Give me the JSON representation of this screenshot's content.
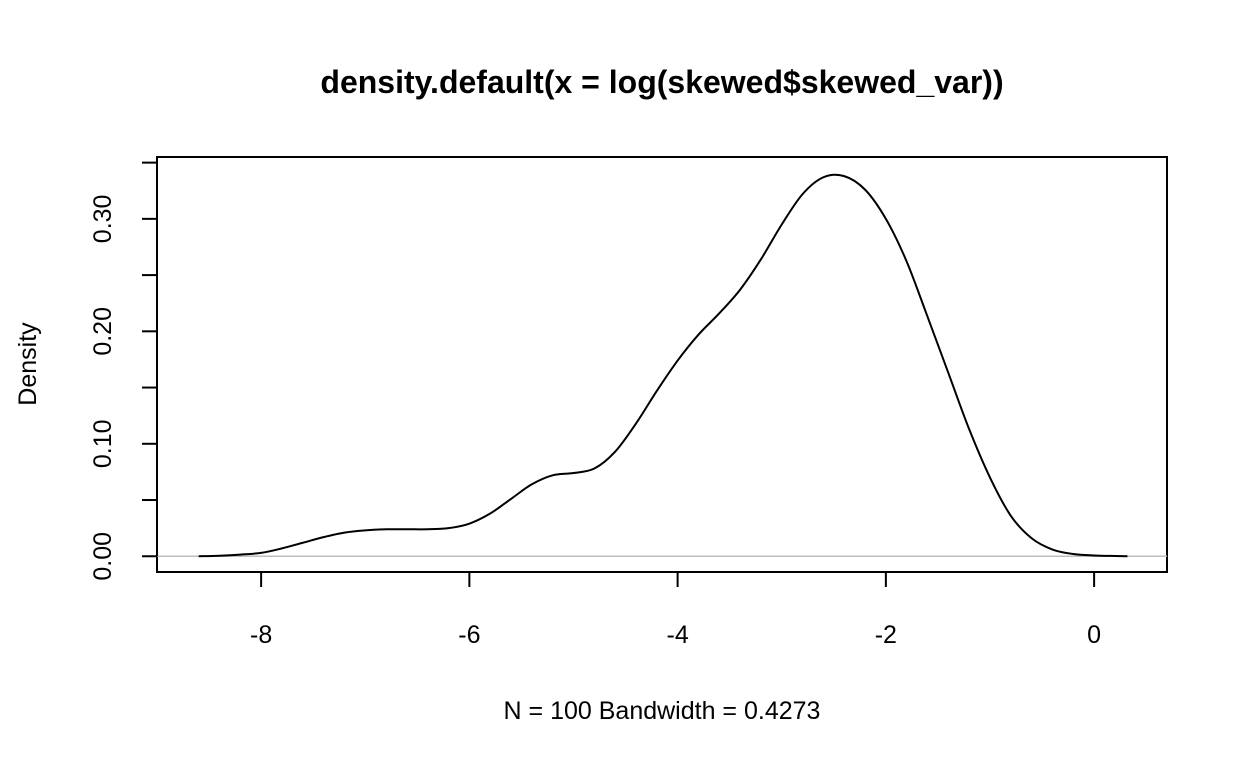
{
  "chart_data": {
    "type": "line",
    "title": "density.default(x = log(skewed$skewed_var))",
    "xlabel": "N = 100   Bandwidth = 0.4273",
    "ylabel": "Density",
    "xlim": [
      -9.0,
      0.7
    ],
    "ylim": [
      -0.014,
      0.355
    ],
    "x_ticks": [
      -8,
      -6,
      -4,
      -2,
      0
    ],
    "x_tick_labels": [
      "-8",
      "-6",
      "-4",
      "-2",
      "0"
    ],
    "y_ticks": [
      0.0,
      0.05,
      0.1,
      0.15,
      0.2,
      0.25,
      0.3,
      0.35
    ],
    "y_tick_labels": [
      "0.00",
      "",
      "0.10",
      "",
      "0.20",
      "",
      "0.30",
      ""
    ],
    "grid": false,
    "baseline_y": 0,
    "series": [
      {
        "color": "#000000",
        "x": [
          -8.6,
          -8.4,
          -8.2,
          -8.0,
          -7.8,
          -7.6,
          -7.4,
          -7.2,
          -7.0,
          -6.8,
          -6.6,
          -6.4,
          -6.2,
          -6.0,
          -5.8,
          -5.6,
          -5.4,
          -5.2,
          -5.0,
          -4.8,
          -4.6,
          -4.4,
          -4.2,
          -4.0,
          -3.8,
          -3.6,
          -3.4,
          -3.2,
          -3.0,
          -2.8,
          -2.6,
          -2.4,
          -2.2,
          -2.0,
          -1.8,
          -1.6,
          -1.4,
          -1.2,
          -1.0,
          -0.8,
          -0.6,
          -0.4,
          -0.2,
          0.0,
          0.2,
          0.32
        ],
        "y": [
          0.0,
          0.0005,
          0.0015,
          0.003,
          0.007,
          0.012,
          0.017,
          0.021,
          0.023,
          0.024,
          0.024,
          0.024,
          0.025,
          0.029,
          0.038,
          0.051,
          0.064,
          0.072,
          0.074,
          0.078,
          0.093,
          0.118,
          0.147,
          0.174,
          0.197,
          0.216,
          0.237,
          0.264,
          0.295,
          0.322,
          0.337,
          0.338,
          0.326,
          0.3,
          0.262,
          0.213,
          0.163,
          0.113,
          0.07,
          0.036,
          0.016,
          0.006,
          0.002,
          0.0007,
          0.0002,
          0.0
        ]
      }
    ]
  }
}
